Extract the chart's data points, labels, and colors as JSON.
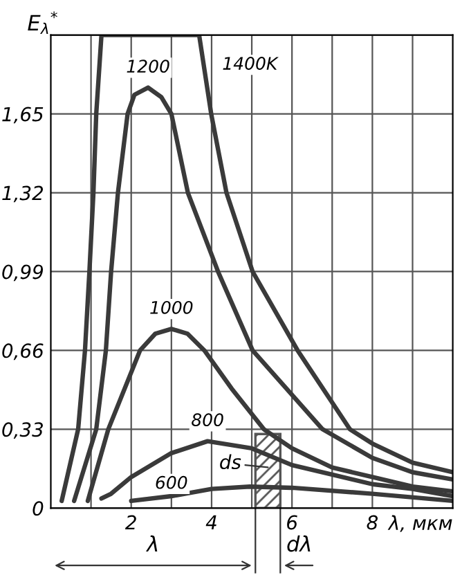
{
  "chart_data": {
    "type": "line",
    "ylabel": "E$_{λ}$$^{*}$",
    "xlabel": "λ, мкм",
    "xlim": [
      0,
      10
    ],
    "ylim": [
      0,
      1.98
    ],
    "xticks": [
      {
        "value": 1,
        "label": null
      },
      2,
      {
        "value": 3,
        "label": null
      },
      4,
      {
        "value": 5,
        "label": null
      },
      6,
      {
        "value": 7,
        "label": null
      },
      8,
      {
        "value": 9,
        "label": null
      }
    ],
    "yticks": [
      0,
      {
        "value": 0.33,
        "label": "0,33"
      },
      {
        "value": 0.66,
        "label": "0,66"
      },
      {
        "value": 0.99,
        "label": "0,99"
      },
      {
        "value": 1.32,
        "label": "1,32"
      },
      {
        "value": 1.65,
        "label": "1,65"
      },
      {
        "value": 1.98,
        "label": null
      }
    ],
    "grid": true,
    "series": [
      {
        "name": "1400K",
        "color": "#3a3a3a",
        "x": [
          0.27,
          0.68,
          0.85,
          0.96,
          1.06,
          1.13,
          1.26,
          3.69,
          3.99,
          4.37,
          5.02,
          6.14,
          7.44,
          8.0,
          9.0,
          10.0
        ],
        "values": [
          0.03,
          0.33,
          0.66,
          0.99,
          1.32,
          1.65,
          1.98,
          1.98,
          1.65,
          1.32,
          0.99,
          0.66,
          0.33,
          0.27,
          0.19,
          0.15
        ]
      },
      {
        "name": "1200",
        "color": "#3a3a3a",
        "x": [
          0.58,
          1.13,
          1.37,
          1.5,
          1.67,
          1.91,
          2.08,
          2.42,
          2.75,
          3.0,
          3.41,
          4.16,
          5.02,
          6.76,
          8.0,
          9.0,
          10.0
        ],
        "values": [
          0.03,
          0.33,
          0.66,
          0.99,
          1.32,
          1.65,
          1.73,
          1.76,
          1.72,
          1.65,
          1.32,
          0.99,
          0.66,
          0.33,
          0.21,
          0.15,
          0.12
        ]
      },
      {
        "name": "1000",
        "color": "#3a3a3a",
        "x": [
          0.92,
          1.43,
          2.22,
          2.6,
          3.0,
          3.4,
          3.82,
          4.5,
          5.3,
          6.0,
          7.0,
          8.0,
          9.0,
          10.0
        ],
        "values": [
          0.03,
          0.33,
          0.66,
          0.73,
          0.75,
          0.73,
          0.66,
          0.5,
          0.33,
          0.25,
          0.17,
          0.13,
          0.09,
          0.07
        ]
      },
      {
        "name": "800",
        "color": "#3a3a3a",
        "x": [
          1.26,
          1.5,
          2.0,
          3.0,
          3.9,
          5.0,
          6.0,
          7.0,
          8.0,
          9.0,
          10.0
        ],
        "values": [
          0.04,
          0.06,
          0.13,
          0.23,
          0.28,
          0.25,
          0.18,
          0.14,
          0.1,
          0.08,
          0.05
        ]
      },
      {
        "name": "600",
        "color": "#3a3a3a",
        "x": [
          2.0,
          3.0,
          4.0,
          4.95,
          6.0,
          8.0,
          10.0
        ],
        "values": [
          0.03,
          0.05,
          0.08,
          0.09,
          0.085,
          0.06,
          0.03
        ]
      },
      {
        "type": "bar",
        "color": "#555555",
        "x": [
          5.4
        ],
        "values": [
          0.31
        ]
      }
    ],
    "annotations": [
      "λ",
      "dλ",
      "ds"
    ]
  }
}
